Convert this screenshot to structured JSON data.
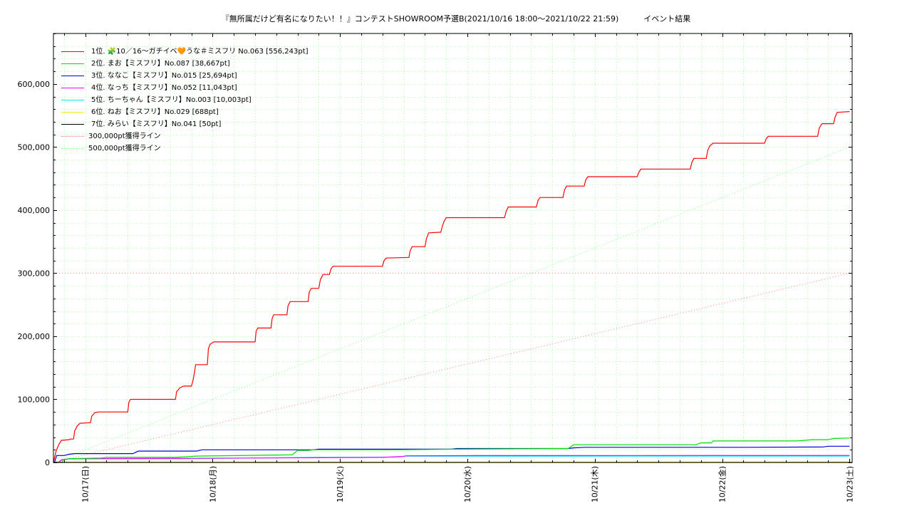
{
  "chart_data": {
    "type": "line",
    "title": "『無所属だけど有名になりたい！！』コンテストSHOWROOM予選B(2021/10/16 18:00～2021/10/22 21:59)",
    "subtitle": "イベント結果",
    "x_tick_labels": [
      "10/17(日)",
      "10/18(月)",
      "10/19(火)",
      "10/20(水)",
      "10/21(木)",
      "10/22(金)",
      "10/23(土)"
    ],
    "x_unit": "hours since 2021/10/16 18:00",
    "x_ticks": [
      6,
      30,
      54,
      78,
      102,
      126,
      150
    ],
    "xlim": [
      0,
      150.5
    ],
    "y_tick_labels": [
      "0",
      "100,000",
      "200,000",
      "300,000",
      "400,000",
      "500,000",
      "600,000"
    ],
    "y_ticks": [
      0,
      100000,
      200000,
      300000,
      400000,
      500000,
      600000
    ],
    "ylim": [
      0,
      680000
    ],
    "grid": true,
    "legend_placement": "top-left",
    "series": [
      {
        "name": "1位. 🧩10／16〜ガチイベ🧡うな＃ミスフリ No.063 [556,243pt]",
        "color": "#ff0000",
        "points": [
          [
            0,
            0
          ],
          [
            0.5,
            18000
          ],
          [
            1,
            28000
          ],
          [
            1.5,
            35000
          ],
          [
            3,
            36000
          ],
          [
            3.2,
            37000
          ],
          [
            3.8,
            37000
          ],
          [
            4,
            50000
          ],
          [
            4.5,
            58000
          ],
          [
            5,
            62000
          ],
          [
            7,
            63000
          ],
          [
            7.2,
            73000
          ],
          [
            7.8,
            79000
          ],
          [
            8.5,
            80000
          ],
          [
            14,
            80000
          ],
          [
            14.2,
            95000
          ],
          [
            14.5,
            100000
          ],
          [
            23,
            100000
          ],
          [
            23.2,
            112000
          ],
          [
            23.8,
            118000
          ],
          [
            24.5,
            121000
          ],
          [
            26,
            121000
          ],
          [
            26.3,
            130000
          ],
          [
            26.5,
            139000
          ],
          [
            26.8,
            155000
          ],
          [
            29,
            155000
          ],
          [
            29.2,
            180000
          ],
          [
            29.5,
            187000
          ],
          [
            30.2,
            191000
          ],
          [
            38,
            191000
          ],
          [
            38.2,
            208000
          ],
          [
            38.5,
            213000
          ],
          [
            41,
            213000
          ],
          [
            41.2,
            228000
          ],
          [
            41.5,
            234000
          ],
          [
            44,
            234000
          ],
          [
            44.2,
            248000
          ],
          [
            44.6,
            255000
          ],
          [
            48,
            255000
          ],
          [
            48.2,
            270000
          ],
          [
            48.6,
            276000
          ],
          [
            50,
            276000
          ],
          [
            50.3,
            290000
          ],
          [
            50.8,
            298000
          ],
          [
            52,
            298000
          ],
          [
            52.3,
            307000
          ],
          [
            52.7,
            311000
          ],
          [
            62,
            311000
          ],
          [
            62.3,
            320000
          ],
          [
            62.7,
            324000
          ],
          [
            67,
            325000
          ],
          [
            67.2,
            335000
          ],
          [
            67.6,
            342000
          ],
          [
            70,
            342000
          ],
          [
            70.3,
            355000
          ],
          [
            70.7,
            364000
          ],
          [
            73,
            365000
          ],
          [
            73.3,
            375000
          ],
          [
            73.6,
            382000
          ],
          [
            74,
            388000
          ],
          [
            85,
            388000
          ],
          [
            85.3,
            398000
          ],
          [
            85.7,
            405000
          ],
          [
            91,
            405000
          ],
          [
            91.3,
            415000
          ],
          [
            91.7,
            420000
          ],
          [
            96,
            420000
          ],
          [
            96.3,
            432000
          ],
          [
            96.7,
            438000
          ],
          [
            100,
            438000
          ],
          [
            100.3,
            448000
          ],
          [
            100.7,
            453000
          ],
          [
            110,
            453000
          ],
          [
            110.3,
            460000
          ],
          [
            110.7,
            465000
          ],
          [
            120,
            465000
          ],
          [
            120.3,
            476000
          ],
          [
            120.7,
            482000
          ],
          [
            123,
            482000
          ],
          [
            123.3,
            495000
          ],
          [
            123.7,
            502000
          ],
          [
            124.3,
            506000
          ],
          [
            134,
            506000
          ],
          [
            134.3,
            513000
          ],
          [
            134.7,
            517000
          ],
          [
            144,
            517000
          ],
          [
            144.3,
            530000
          ],
          [
            144.8,
            537000
          ],
          [
            147,
            537000
          ],
          [
            147.3,
            548000
          ],
          [
            147.7,
            555000
          ],
          [
            150,
            556243
          ]
        ]
      },
      {
        "name": "2位. まお【ミスフリ】No.087 [38,667pt]",
        "color": "#00dd00",
        "points": [
          [
            0,
            0
          ],
          [
            1.5,
            0
          ],
          [
            2,
            4000
          ],
          [
            3,
            6000
          ],
          [
            9,
            7000
          ],
          [
            10,
            8000
          ],
          [
            23,
            8000
          ],
          [
            27,
            10000
          ],
          [
            45,
            12000
          ],
          [
            46,
            19000
          ],
          [
            48,
            19000
          ],
          [
            49,
            20000
          ],
          [
            65,
            20000
          ],
          [
            76,
            21000
          ],
          [
            97,
            22000
          ],
          [
            98,
            28000
          ],
          [
            111,
            28000
          ],
          [
            121,
            28000
          ],
          [
            122,
            31000
          ],
          [
            124,
            31000
          ],
          [
            124.3,
            34000
          ],
          [
            140,
            34000
          ],
          [
            143,
            36000
          ],
          [
            146,
            36000
          ],
          [
            147,
            38000
          ],
          [
            150,
            38667
          ]
        ]
      },
      {
        "name": "3位. ななこ【ミスフリ】No.015 [25,694pt]",
        "color": "#0000dd",
        "points": [
          [
            0,
            0
          ],
          [
            0.2,
            0
          ],
          [
            0.6,
            11000
          ],
          [
            2,
            11000
          ],
          [
            3,
            13000
          ],
          [
            4,
            14000
          ],
          [
            15,
            14000
          ],
          [
            15.5,
            16000
          ],
          [
            16,
            18000
          ],
          [
            27,
            18000
          ],
          [
            28,
            20000
          ],
          [
            49,
            20000
          ],
          [
            50,
            21000
          ],
          [
            75,
            21000
          ],
          [
            76,
            22000
          ],
          [
            97,
            22000
          ],
          [
            98,
            23000
          ],
          [
            100,
            24000
          ],
          [
            130,
            24000
          ],
          [
            145,
            24500
          ],
          [
            146,
            25694
          ],
          [
            150,
            25694
          ]
        ]
      },
      {
        "name": "4位. なっち【ミスフリ】No.052 [11,043pt]",
        "color": "#ff00ff",
        "points": [
          [
            0,
            0
          ],
          [
            1,
            0
          ],
          [
            1.5,
            4000
          ],
          [
            3,
            6000
          ],
          [
            27,
            6500
          ],
          [
            50,
            7500
          ],
          [
            62,
            8000
          ],
          [
            66,
            9500
          ],
          [
            66.5,
            10500
          ],
          [
            80,
            10800
          ],
          [
            150,
            11043
          ]
        ]
      },
      {
        "name": "5位. ちーちゃん【ミスフリ】No.003 [10,003pt]",
        "color": "#00eeee",
        "points": [
          [
            0,
            0
          ],
          [
            1,
            0
          ],
          [
            1.5,
            4000
          ],
          [
            3,
            5500
          ],
          [
            27,
            6000
          ],
          [
            50,
            8000
          ],
          [
            65,
            8500
          ],
          [
            66,
            9800
          ],
          [
            150,
            10003
          ]
        ]
      },
      {
        "name": "6位. ねお【ミスフリ】No.029 [688pt]",
        "color": "#eeee00",
        "points": [
          [
            0,
            0
          ],
          [
            5,
            100
          ],
          [
            60,
            300
          ],
          [
            120,
            500
          ],
          [
            150,
            688
          ]
        ]
      },
      {
        "name": "7位. みらい【ミスフリ】No.041 [50pt]",
        "color": "#000000",
        "points": [
          [
            0,
            0
          ],
          [
            100,
            20
          ],
          [
            145,
            30
          ],
          [
            146,
            50
          ],
          [
            150,
            50
          ]
        ]
      }
    ],
    "reference_lines": [
      {
        "name": "300,000pt獲得ライン",
        "color": "#ff8080",
        "points": [
          [
            0,
            0
          ],
          [
            150,
            300000
          ]
        ],
        "horizontal_at": 300000
      },
      {
        "name": "500,000pt獲得ライン",
        "color": "#80ff80",
        "points": [
          [
            0,
            0
          ],
          [
            150,
            500000
          ]
        ]
      }
    ]
  }
}
